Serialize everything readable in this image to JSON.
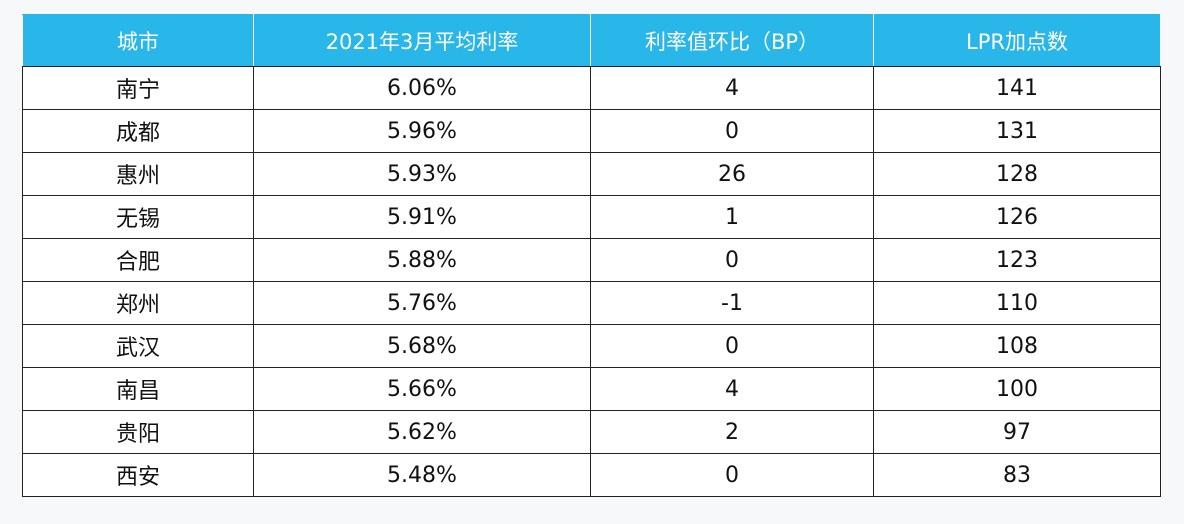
{
  "table": {
    "header": [
      "城市",
      "2021年3月平均利率",
      "利率值环比（BP）",
      "LPR加点数"
    ],
    "rows": [
      [
        "南宁",
        "6.06%",
        "4",
        "141"
      ],
      [
        "成都",
        "5.96%",
        "0",
        "131"
      ],
      [
        "惠州",
        "5.93%",
        "26",
        "128"
      ],
      [
        "无锡",
        "5.91%",
        "1",
        "126"
      ],
      [
        "合肥",
        "5.88%",
        "0",
        "123"
      ],
      [
        "郑州",
        "5.76%",
        "-1",
        "110"
      ],
      [
        "武汉",
        "5.68%",
        "0",
        "108"
      ],
      [
        "南昌",
        "5.66%",
        "4",
        "100"
      ],
      [
        "贵阳",
        "5.62%",
        "2",
        "97"
      ],
      [
        "西安",
        "5.48%",
        "0",
        "83"
      ]
    ]
  }
}
